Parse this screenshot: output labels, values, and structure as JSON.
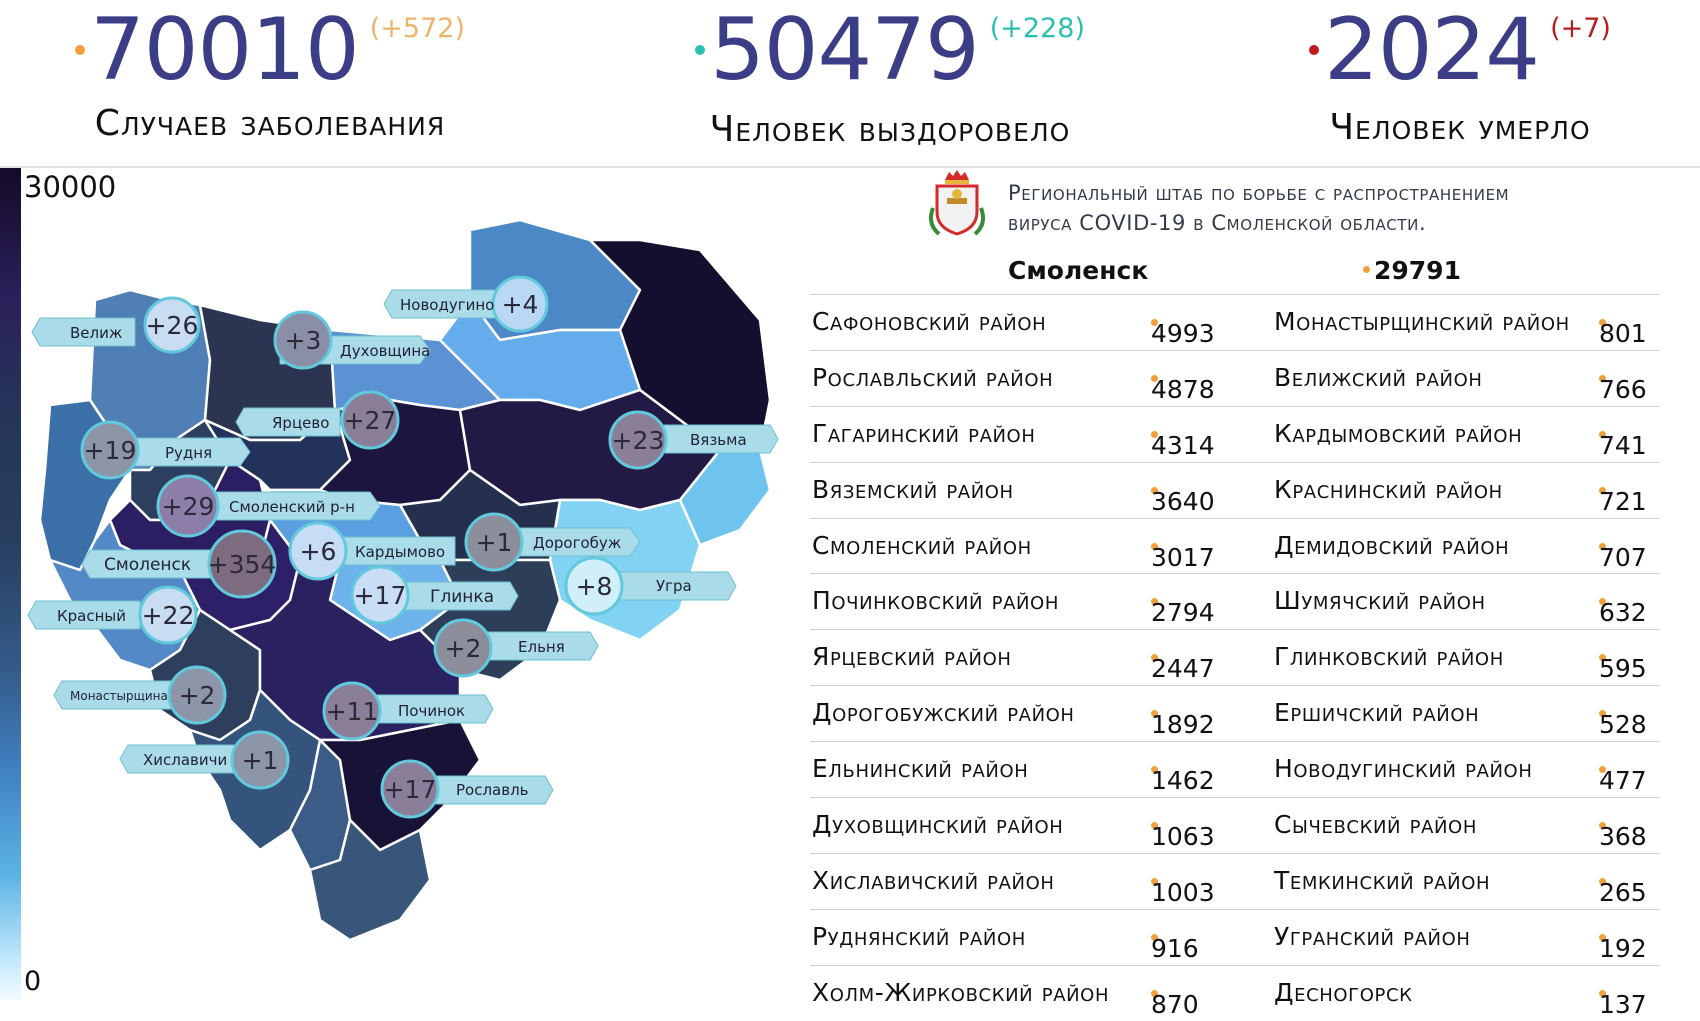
{
  "header": {
    "stats": [
      {
        "value": "70010",
        "delta": "(+572)",
        "label": "Случаев заболевания",
        "dot_color": "#f0a039",
        "delta_color": "#e8b56a"
      },
      {
        "value": "50479",
        "delta": "(+228)",
        "label": "Человек выздоровело",
        "dot_color": "#2bbfb2",
        "delta_color": "#2bbfb2"
      },
      {
        "value": "2024",
        "delta": "(+7)",
        "label": "Человек умерло",
        "dot_color": "#c21a1a",
        "delta_color": "#b02020"
      }
    ]
  },
  "legend": {
    "max": "30000",
    "min": "0"
  },
  "panel": {
    "hq_line1": "Региональный штаб по борьбе с распространением",
    "hq_line2": "вируса COVID-19 в Смоленской области.",
    "city": {
      "name": "Смоленск",
      "value": "29791"
    },
    "rows": [
      {
        "left_name": "Сафоновский район",
        "left_value": "4993",
        "right_name": "Монастырщинский район",
        "right_value": "801"
      },
      {
        "left_name": "Рославльский район",
        "left_value": "4878",
        "right_name": "Велижский район",
        "right_value": "766"
      },
      {
        "left_name": "Гагаринский район",
        "left_value": "4314",
        "right_name": "Кардымовский район",
        "right_value": "741"
      },
      {
        "left_name": "Вяземский район",
        "left_value": "3640",
        "right_name": "Краснинский район",
        "right_value": "721"
      },
      {
        "left_name": "Смоленский район",
        "left_value": "3017",
        "right_name": "Демидовский район",
        "right_value": "707"
      },
      {
        "left_name": "Починковский район",
        "left_value": "2794",
        "right_name": "Шумячский район",
        "right_value": "632"
      },
      {
        "left_name": "Ярцевский район",
        "left_value": "2447",
        "right_name": "Глинковский район",
        "right_value": "595"
      },
      {
        "left_name": "Дорогобужский район",
        "left_value": "1892",
        "right_name": "Ершичский район",
        "right_value": "528"
      },
      {
        "left_name": "Ельнинский район",
        "left_value": "1462",
        "right_name": "Новодугинский район",
        "right_value": "477"
      },
      {
        "left_name": "Духовщинский район",
        "left_value": "1063",
        "right_name": "Сычевский район",
        "right_value": "368"
      },
      {
        "left_name": "Хиславичский район",
        "left_value": "1003",
        "right_name": "Темкинский район",
        "right_value": "265"
      },
      {
        "left_name": "Руднянский район",
        "left_value": "916",
        "right_name": "Угранский район",
        "right_value": "192"
      },
      {
        "left_name": "Холм-Жирковский район",
        "left_value": "870",
        "right_name": "Десногорск",
        "right_value": "137"
      }
    ]
  },
  "map": {
    "districts": [
      {
        "name": "Velizh",
        "color": "#4f7fb4"
      },
      {
        "name": "Demidov",
        "color": "#3a6fa8"
      },
      {
        "name": "Dukhovshchina",
        "color": "#2b3552"
      },
      {
        "name": "Kholm-Zhirkovsky",
        "color": "#5a92d4"
      },
      {
        "name": "Sychevka",
        "color": "#4c87c6"
      },
      {
        "name": "Gagarin",
        "color": "#140f2e"
      },
      {
        "name": "Novodugino",
        "color": "#64acec"
      },
      {
        "name": "Rudnya",
        "color": "#2d3f5e"
      },
      {
        "name": "Smolensky-rn",
        "color": "#2b1e63"
      },
      {
        "name": "Yartsevo",
        "color": "#23325a"
      },
      {
        "name": "Safonovo",
        "color": "#1c1540"
      },
      {
        "name": "Vyazma",
        "color": "#221a45"
      },
      {
        "name": "Temkino",
        "color": "#6fc3ef"
      },
      {
        "name": "Ugra",
        "color": "#82d3f3"
      },
      {
        "name": "Dorogobuzh",
        "color": "#24304d"
      },
      {
        "name": "Kardymovo",
        "color": "#5aa0e0"
      },
      {
        "name": "Glinka",
        "color": "#6db2ea"
      },
      {
        "name": "Elnya",
        "color": "#2d3e58"
      },
      {
        "name": "Smolensk",
        "color": "#2e2068"
      },
      {
        "name": "Krasny",
        "color": "#5489c8"
      },
      {
        "name": "Monastyrshchina",
        "color": "#2e3f5e"
      },
      {
        "name": "Pochinok",
        "color": "#2a2260"
      },
      {
        "name": "Khislavichi",
        "color": "#34547e"
      },
      {
        "name": "Shumyachi",
        "color": "#3b5c86"
      },
      {
        "name": "Roslavl",
        "color": "#181237"
      },
      {
        "name": "Ershichi",
        "color": "#375679"
      }
    ],
    "labels": [
      {
        "name": "Велиж",
        "delta": "+26"
      },
      {
        "name": "Духовщина",
        "delta": "+3"
      },
      {
        "name": "Новодугино",
        "delta": "+4"
      },
      {
        "name": "Ярцево",
        "delta": "+27"
      },
      {
        "name": "Рудня",
        "delta": "+19"
      },
      {
        "name": "Вязьма",
        "delta": "+23"
      },
      {
        "name": "Смоленский р-н",
        "delta": "+29"
      },
      {
        "name": "Смоленск",
        "delta": "+354"
      },
      {
        "name": "Кардымово",
        "delta": "+6"
      },
      {
        "name": "Дорогобуж",
        "delta": "+1"
      },
      {
        "name": "Угра",
        "delta": "+8"
      },
      {
        "name": "Глинка",
        "delta": "+17"
      },
      {
        "name": "Красный",
        "delta": "+22"
      },
      {
        "name": "Ельня",
        "delta": "+2"
      },
      {
        "name": "Монастырщина",
        "delta": "+2"
      },
      {
        "name": "Починок",
        "delta": "+11"
      },
      {
        "name": "Хиславичи",
        "delta": "+1"
      },
      {
        "name": "Рославль",
        "delta": "+17"
      }
    ]
  }
}
